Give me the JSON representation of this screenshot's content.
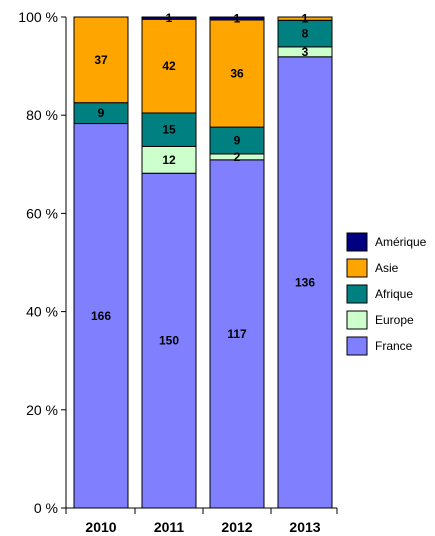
{
  "chart_data": {
    "type": "bar",
    "stacked": "percent",
    "categories": [
      "2010",
      "2011",
      "2012",
      "2013"
    ],
    "series": [
      {
        "name": "France",
        "color": "#8080FF",
        "values": [
          166,
          150,
          117,
          136
        ]
      },
      {
        "name": "Europe",
        "color": "#CCFFCC",
        "values": [
          0,
          12,
          2,
          3
        ]
      },
      {
        "name": "Afrique",
        "color": "#008080",
        "values": [
          9,
          15,
          9,
          8
        ]
      },
      {
        "name": "Asie",
        "color": "#FFA500",
        "values": [
          37,
          42,
          36,
          1
        ]
      },
      {
        "name": "Amérique",
        "color": "#000080",
        "values": [
          0,
          1,
          1,
          0
        ]
      }
    ],
    "y_ticks": [
      "0 %",
      "20 %",
      "40 %",
      "60 %",
      "80 %",
      "100 %"
    ],
    "ylim": [
      0,
      100
    ],
    "grid": false,
    "legend": {
      "placement": "right",
      "order": [
        "Amérique",
        "Asie",
        "Afrique",
        "Europe",
        "France"
      ]
    }
  }
}
